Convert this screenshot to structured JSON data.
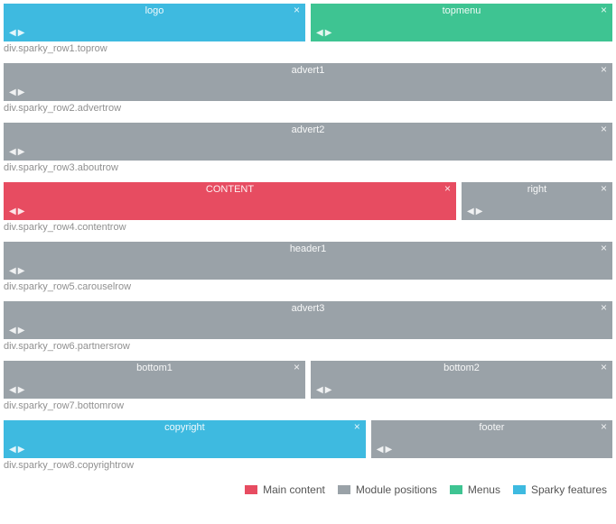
{
  "colors": {
    "main_content": "#e74c61",
    "module": "#9aa2a8",
    "menus": "#3ec492",
    "sparky": "#3ebae0",
    "caption_text": "#909090"
  },
  "rows": [
    {
      "caption": "div.sparky_row1.toprow",
      "blocks": [
        {
          "label": "logo",
          "colorKey": "sparky",
          "flex": 50
        },
        {
          "label": "topmenu",
          "colorKey": "menus",
          "flex": 50
        }
      ]
    },
    {
      "caption": "div.sparky_row2.advertrow",
      "blocks": [
        {
          "label": "advert1",
          "colorKey": "module",
          "flex": 100
        }
      ]
    },
    {
      "caption": "div.sparky_row3.aboutrow",
      "blocks": [
        {
          "label": "advert2",
          "colorKey": "module",
          "flex": 100
        }
      ]
    },
    {
      "caption": "div.sparky_row4.contentrow",
      "blocks": [
        {
          "label": "CONTENT",
          "colorKey": "main_content",
          "flex": 75
        },
        {
          "label": "right",
          "colorKey": "module",
          "flex": 25
        }
      ]
    },
    {
      "caption": "div.sparky_row5.carouselrow",
      "blocks": [
        {
          "label": "header1",
          "colorKey": "module",
          "flex": 100
        }
      ]
    },
    {
      "caption": "div.sparky_row6.partnersrow",
      "blocks": [
        {
          "label": "advert3",
          "colorKey": "module",
          "flex": 100
        }
      ]
    },
    {
      "caption": "div.sparky_row7.bottomrow",
      "blocks": [
        {
          "label": "bottom1",
          "colorKey": "module",
          "flex": 50
        },
        {
          "label": "bottom2",
          "colorKey": "module",
          "flex": 50
        }
      ]
    },
    {
      "caption": "div.sparky_row8.copyrightrow",
      "blocks": [
        {
          "label": "copyright",
          "colorKey": "sparky",
          "flex": 60
        },
        {
          "label": "footer",
          "colorKey": "module",
          "flex": 40
        }
      ]
    }
  ],
  "legend": [
    {
      "label": "Main content",
      "colorKey": "main_content"
    },
    {
      "label": "Module positions",
      "colorKey": "module"
    },
    {
      "label": "Menus",
      "colorKey": "menus"
    },
    {
      "label": "Sparky features",
      "colorKey": "sparky"
    }
  ]
}
